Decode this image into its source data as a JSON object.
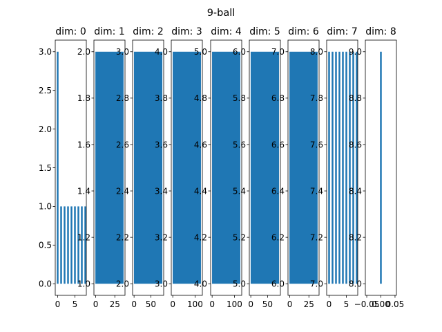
{
  "chart_data": {
    "type": "bar",
    "title": "9-ball",
    "color": "#1f77b4",
    "panels": [
      {
        "title": "dim: 0",
        "y_ticks": [
          "0.0",
          "0.5",
          "1.0",
          "1.5",
          "2.0",
          "2.5",
          "3.0"
        ],
        "ylim": [
          -0.15,
          3.15
        ],
        "x_ticks": [
          "0",
          "5"
        ],
        "xlim": [
          -0.7,
          8.3
        ],
        "bars": [
          {
            "x": 0,
            "y0": 0,
            "y1": 3
          },
          {
            "x": 1,
            "y0": 0,
            "y1": 1
          },
          {
            "x": 2,
            "y0": 0,
            "y1": 1
          },
          {
            "x": 3,
            "y0": 0,
            "y1": 1
          },
          {
            "x": 4,
            "y0": 0,
            "y1": 1
          },
          {
            "x": 5,
            "y0": 0,
            "y1": 1
          },
          {
            "x": 6,
            "y0": 0,
            "y1": 1
          },
          {
            "x": 7,
            "y0": 0,
            "y1": 1
          },
          {
            "x": 8,
            "y0": 0,
            "y1": 1
          }
        ]
      },
      {
        "title": "dim: 1",
        "y_ticks": [
          "1.0",
          "1.2",
          "1.4",
          "1.6",
          "1.8",
          "2.0"
        ],
        "ylim": [
          0.95,
          2.05
        ],
        "x_ticks": [
          "0",
          "25"
        ],
        "xlim": [
          -2.3,
          38.3
        ],
        "band": {
          "x0": -0.4,
          "x1": 36.4,
          "y0": 1,
          "y1": 2
        }
      },
      {
        "title": "dim: 2",
        "y_ticks": [
          "2.0",
          "2.2",
          "2.4",
          "2.6",
          "2.8",
          "3.0"
        ],
        "ylim": [
          1.95,
          3.05
        ],
        "x_ticks": [
          "0",
          "50"
        ],
        "xlim": [
          -4.4,
          88.4
        ],
        "band": {
          "x0": -0.4,
          "x1": 84.4,
          "y0": 2,
          "y1": 3
        }
      },
      {
        "title": "dim: 3",
        "y_ticks": [
          "3.0",
          "3.2",
          "3.4",
          "3.6",
          "3.8",
          "4.0"
        ],
        "ylim": [
          2.95,
          4.05
        ],
        "x_ticks": [
          "0",
          "100"
        ],
        "xlim": [
          -6.7,
          132.7
        ],
        "band": {
          "x0": -0.4,
          "x1": 126.4,
          "y0": 3,
          "y1": 4
        }
      },
      {
        "title": "dim: 4",
        "y_ticks": [
          "4.0",
          "4.2",
          "4.4",
          "4.6",
          "4.8",
          "5.0"
        ],
        "ylim": [
          3.95,
          5.05
        ],
        "x_ticks": [
          "0",
          "100"
        ],
        "xlim": [
          -6.7,
          132.7
        ],
        "band": {
          "x0": -0.4,
          "x1": 126.4,
          "y0": 4,
          "y1": 5
        }
      },
      {
        "title": "dim: 5",
        "y_ticks": [
          "5.0",
          "5.2",
          "5.4",
          "5.6",
          "5.8",
          "6.0"
        ],
        "ylim": [
          4.95,
          6.05
        ],
        "x_ticks": [
          "0",
          "50"
        ],
        "xlim": [
          -4.4,
          88.4
        ],
        "band": {
          "x0": -0.4,
          "x1": 84.4,
          "y0": 5,
          "y1": 6
        }
      },
      {
        "title": "dim: 6",
        "y_ticks": [
          "6.0",
          "6.2",
          "6.4",
          "6.6",
          "6.8",
          "7.0"
        ],
        "ylim": [
          5.95,
          7.05
        ],
        "x_ticks": [
          "0",
          "25"
        ],
        "xlim": [
          -2.3,
          38.3
        ],
        "band": {
          "x0": -0.4,
          "x1": 36.4,
          "y0": 6,
          "y1": 7
        }
      },
      {
        "title": "dim: 7",
        "y_ticks": [
          "7.0",
          "7.2",
          "7.4",
          "7.6",
          "7.8",
          "8.0"
        ],
        "ylim": [
          6.95,
          8.05
        ],
        "x_ticks": [
          "0",
          "5"
        ],
        "xlim": [
          -0.7,
          8.3
        ],
        "bars": [
          {
            "x": 0,
            "y0": 7,
            "y1": 8
          },
          {
            "x": 1,
            "y0": 7,
            "y1": 8
          },
          {
            "x": 2,
            "y0": 7,
            "y1": 8
          },
          {
            "x": 3,
            "y0": 7,
            "y1": 8
          },
          {
            "x": 4,
            "y0": 7,
            "y1": 8
          },
          {
            "x": 5,
            "y0": 7,
            "y1": 8
          },
          {
            "x": 6,
            "y0": 7,
            "y1": 8
          },
          {
            "x": 7,
            "y0": 7,
            "y1": 8
          },
          {
            "x": 8,
            "y0": 7,
            "y1": 8
          }
        ]
      },
      {
        "title": "dim: 8",
        "y_ticks": [
          "8.0",
          "8.2",
          "8.4",
          "8.6",
          "8.8",
          "9.0"
        ],
        "ylim": [
          7.95,
          9.05
        ],
        "x_ticks": [
          "−0.05",
          "0.00",
          "0.05"
        ],
        "xlim": [
          -0.055,
          0.055
        ],
        "bars": [
          {
            "x": 0,
            "y0": 8,
            "y1": 9
          }
        ]
      }
    ]
  }
}
